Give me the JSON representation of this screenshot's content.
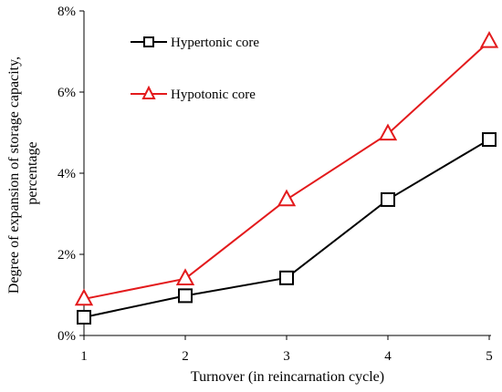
{
  "chart_data": {
    "type": "line",
    "title": "",
    "xlabel": "Turnover (in reincarnation cycle)",
    "ylabel_lines": [
      "Degree of expansion of storage capacity,",
      "percentage"
    ],
    "x": [
      1,
      2,
      3,
      4,
      5
    ],
    "x_tick_labels": [
      "1",
      "2",
      "3",
      "4",
      "5"
    ],
    "ylim": [
      0,
      8
    ],
    "y_ticks": [
      0,
      2,
      4,
      6,
      8
    ],
    "y_tick_labels": [
      "0%",
      "2%",
      "4%",
      "6%",
      "8%"
    ],
    "grid": false,
    "legend_position": "top-left",
    "series": [
      {
        "name": "Hypertonic core",
        "color": "#000000",
        "marker": "square",
        "values": [
          0.45,
          0.98,
          1.42,
          3.35,
          4.83
        ]
      },
      {
        "name": "Hypotonic core",
        "color": "#e31a1c",
        "marker": "triangle",
        "values": [
          0.9,
          1.4,
          3.35,
          4.97,
          7.25
        ]
      }
    ]
  }
}
